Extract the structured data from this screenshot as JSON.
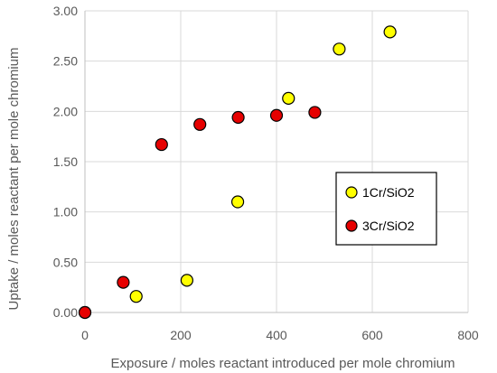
{
  "chart_data": {
    "type": "scatter",
    "title": "",
    "xlabel": "Exposure /  moles reactant introduced per mole chromium",
    "ylabel": "Uptake / moles reactant per mole chromium",
    "xlim": [
      0,
      800
    ],
    "ylim": [
      0,
      3
    ],
    "xticks": [
      "0",
      "200",
      "400",
      "600",
      "800"
    ],
    "yticks": [
      "0.00",
      "0.50",
      "1.00",
      "1.50",
      "2.00",
      "2.50",
      "3.00"
    ],
    "grid": "vertical-and-horizontal",
    "legend_position": "right-middle",
    "series": [
      {
        "name": "1Cr/SiO2",
        "color": "#FFFF00",
        "marker": "circle",
        "points": [
          [
            0,
            0.0
          ],
          [
            107,
            0.16
          ],
          [
            213,
            0.32
          ],
          [
            319,
            1.1
          ],
          [
            425,
            2.13
          ],
          [
            531,
            2.62
          ],
          [
            637,
            2.79
          ]
        ]
      },
      {
        "name": "3Cr/SiO2",
        "color": "#E60000",
        "marker": "circle",
        "points": [
          [
            0,
            0.0
          ],
          [
            80,
            0.3
          ],
          [
            160,
            1.67
          ],
          [
            240,
            1.87
          ],
          [
            320,
            1.94
          ],
          [
            400,
            1.96
          ],
          [
            480,
            1.99
          ]
        ]
      }
    ]
  }
}
